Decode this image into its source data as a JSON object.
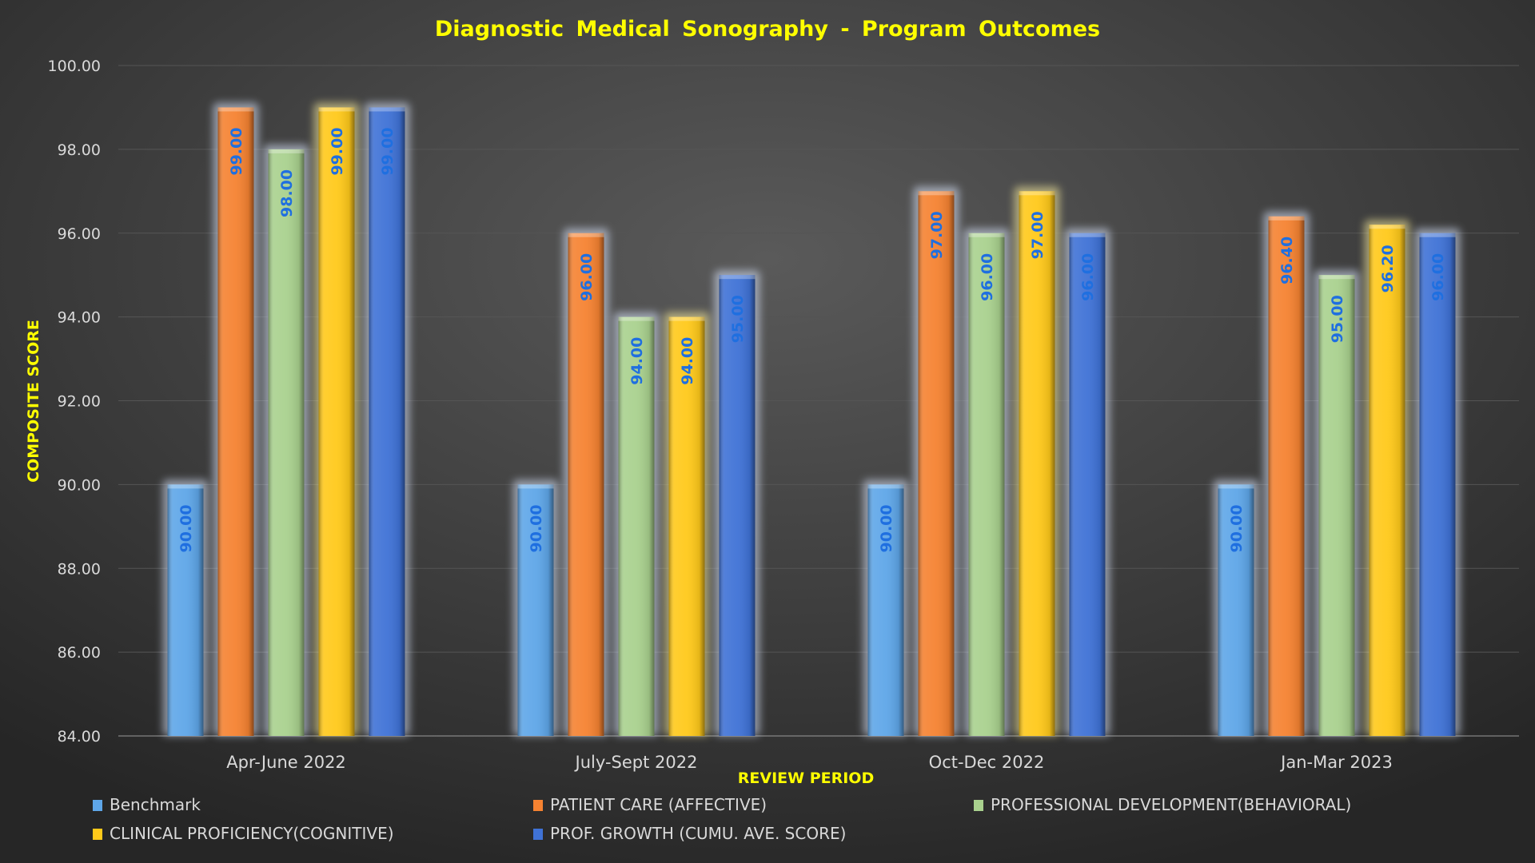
{
  "chart_data": {
    "type": "bar",
    "title": "Diagnostic  Medical  Sonography  - Program  Outcomes",
    "xlabel": "REVIEW PERIOD",
    "ylabel": "COMPOSITE SCORE",
    "ylim": [
      84,
      100
    ],
    "yticks": [
      "84.00",
      "86.00",
      "88.00",
      "90.00",
      "92.00",
      "94.00",
      "96.00",
      "98.00",
      "100.00"
    ],
    "grid": true,
    "legend_position": "bottom",
    "categories": [
      "Apr-June 2022",
      "July-Sept 2022",
      "Oct-Dec 2022",
      "Jan-Mar 2023"
    ],
    "series": [
      {
        "name": "Benchmark",
        "color": "#5ea6e8",
        "values": [
          90.0,
          90.0,
          90.0,
          90.0
        ],
        "labels": [
          "90.00",
          "90.00",
          "90.00",
          "90.00"
        ]
      },
      {
        "name": "PATIENT CARE (AFFECTIVE)",
        "color": "#f58231",
        "values": [
          99.0,
          96.0,
          97.0,
          96.4
        ],
        "labels": [
          "99.00",
          "96.00",
          "97.00",
          "96.40"
        ]
      },
      {
        "name": "PROFESSIONAL DEVELOPMENT(BEHAVIORAL)",
        "color": "#a9d18e",
        "values": [
          98.0,
          94.0,
          96.0,
          95.0
        ],
        "labels": [
          "98.00",
          "94.00",
          "96.00",
          "95.00"
        ]
      },
      {
        "name": "CLINICAL PROFICIENCY(COGNITIVE)",
        "color": "#ffc91a",
        "values": [
          99.0,
          94.0,
          97.0,
          96.2
        ],
        "labels": [
          "99.00",
          "94.00",
          "97.00",
          "96.20"
        ]
      },
      {
        "name": "PROF. GROWTH (CUMU. AVE. SCORE)",
        "color": "#3f72d6",
        "values": [
          99.0,
          95.0,
          96.0,
          96.0
        ],
        "labels": [
          "99.00",
          "95.00",
          "96.00",
          "96.00"
        ]
      }
    ]
  }
}
